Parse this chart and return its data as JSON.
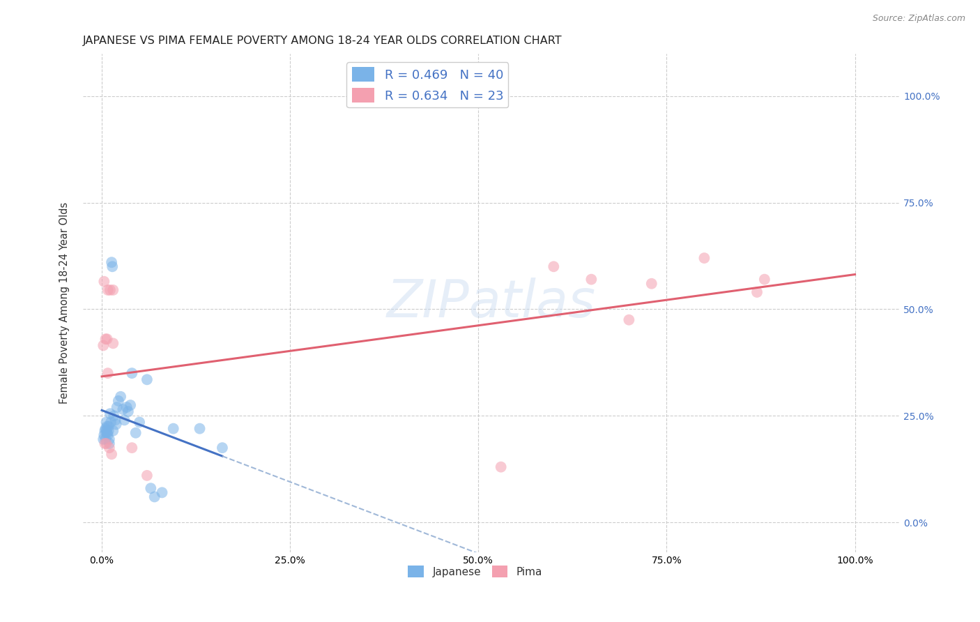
{
  "title": "JAPANESE VS PIMA FEMALE POVERTY AMONG 18-24 YEAR OLDS CORRELATION CHART",
  "source": "Source: ZipAtlas.com",
  "ylabel": "Female Poverty Among 18-24 Year Olds",
  "background_color": "#ffffff",
  "watermark": "ZIPatlas",
  "japanese_color": "#7ab3e8",
  "pima_color": "#f4a0b0",
  "trend_japanese_color": "#4472c4",
  "trend_pima_color": "#e06070",
  "trend_dashed_color": "#a0b8d8",
  "japanese_R": 0.469,
  "japanese_N": 40,
  "pima_R": 0.634,
  "pima_N": 23,
  "legend_text_color": "#4472c4",
  "japanese_x": [
    0.002,
    0.003,
    0.004,
    0.005,
    0.005,
    0.006,
    0.006,
    0.007,
    0.007,
    0.008,
    0.009,
    0.009,
    0.01,
    0.01,
    0.011,
    0.012,
    0.013,
    0.014,
    0.015,
    0.016,
    0.018,
    0.019,
    0.02,
    0.022,
    0.025,
    0.028,
    0.03,
    0.033,
    0.035,
    0.038,
    0.04,
    0.045,
    0.05,
    0.06,
    0.065,
    0.07,
    0.08,
    0.095,
    0.13,
    0.16
  ],
  "japanese_y": [
    0.195,
    0.205,
    0.215,
    0.22,
    0.195,
    0.235,
    0.215,
    0.21,
    0.225,
    0.205,
    0.215,
    0.225,
    0.185,
    0.195,
    0.255,
    0.235,
    0.61,
    0.6,
    0.215,
    0.25,
    0.24,
    0.23,
    0.27,
    0.285,
    0.295,
    0.265,
    0.24,
    0.27,
    0.26,
    0.275,
    0.35,
    0.21,
    0.235,
    0.335,
    0.08,
    0.06,
    0.07,
    0.22,
    0.22,
    0.175
  ],
  "pima_x": [
    0.002,
    0.003,
    0.004,
    0.005,
    0.006,
    0.007,
    0.008,
    0.008,
    0.01,
    0.011,
    0.013,
    0.015,
    0.015,
    0.04,
    0.06,
    0.53,
    0.6,
    0.65,
    0.7,
    0.73,
    0.8,
    0.87,
    0.88
  ],
  "pima_y": [
    0.415,
    0.565,
    0.185,
    0.43,
    0.185,
    0.43,
    0.545,
    0.35,
    0.175,
    0.545,
    0.16,
    0.42,
    0.545,
    0.175,
    0.11,
    0.13,
    0.6,
    0.57,
    0.475,
    0.56,
    0.62,
    0.54,
    0.57
  ],
  "x_ticks": [
    0.0,
    0.25,
    0.5,
    0.75,
    1.0
  ],
  "x_labels": [
    "0.0%",
    "25.0%",
    "50.0%",
    "75.0%",
    "100.0%"
  ],
  "y_ticks": [
    0.0,
    0.25,
    0.5,
    0.75,
    1.0
  ],
  "y_labels": [
    "0.0%",
    "25.0%",
    "50.0%",
    "75.0%",
    "100.0%"
  ]
}
